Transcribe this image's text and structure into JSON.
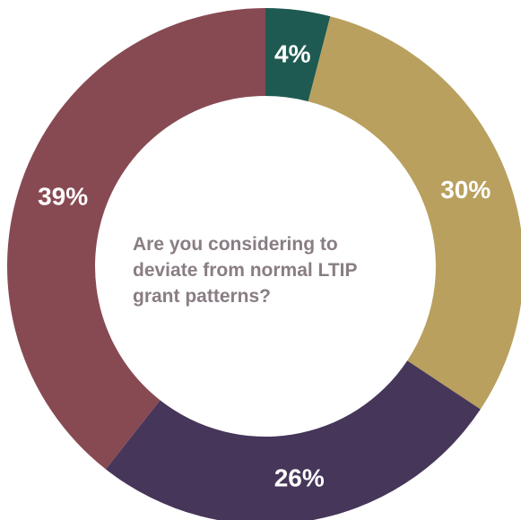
{
  "chart_data": {
    "type": "pie",
    "variant": "donut",
    "title_lines": [
      "Are you considering to",
      "deviate from normal LTIP",
      "grant patterns?"
    ],
    "slices": [
      {
        "value": 4,
        "label": "4%",
        "color": "#1e5a51"
      },
      {
        "value": 30,
        "label": "30%",
        "color": "#b9a05e"
      },
      {
        "value": 26,
        "label": "26%",
        "color": "#46365a"
      },
      {
        "value": 39,
        "label": "39%",
        "color": "#874a53"
      }
    ],
    "start": "top",
    "direction": "clockwise",
    "legend": "none"
  }
}
